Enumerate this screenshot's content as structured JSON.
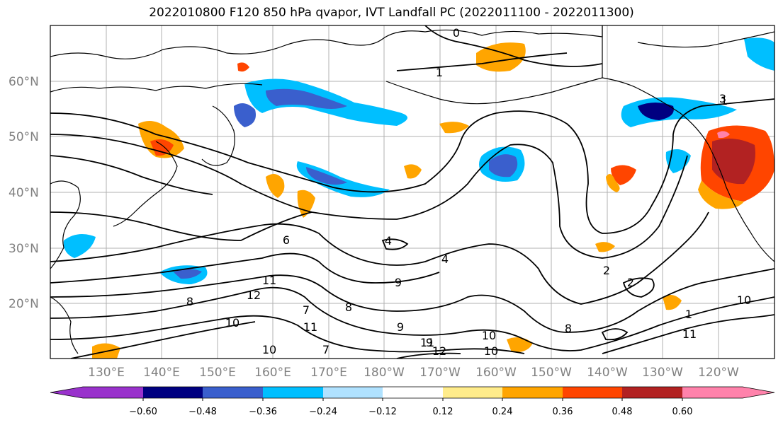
{
  "title": "2022010800 F120 850 hPa qvapor, IVT Landfall PC (2022011100 - 2022011300)",
  "map": {
    "lat_labels": [
      "60°N",
      "50°N",
      "40°N",
      "30°N",
      "20°N"
    ],
    "lon_labels": [
      "130°E",
      "140°E",
      "150°E",
      "160°E",
      "170°E",
      "180°W",
      "170°W",
      "160°W",
      "150°W",
      "140°W",
      "130°W",
      "120°W"
    ],
    "contour_labels": [
      "0",
      "1",
      "1",
      "4",
      "4",
      "9",
      "9",
      "11",
      "11",
      "12",
      "10",
      "10",
      "8",
      "7",
      "8",
      "9",
      "2",
      "2",
      "1",
      "10",
      "11",
      "10",
      "8",
      "6",
      "3",
      "7",
      "11",
      "12",
      "10"
    ]
  },
  "colorbar": {
    "tick_labels": [
      "−0.60",
      "−0.48",
      "−0.36",
      "−0.24",
      "−0.12",
      "0.12",
      "0.24",
      "0.36",
      "0.48",
      "0.60"
    ],
    "colors": [
      "#9932cc",
      "#000080",
      "#3a5fcd",
      "#00bfff",
      "#b0e2ff",
      "#ffffff",
      "#ffec8b",
      "#ffa500",
      "#ff4500",
      "#b22222",
      "#ff82ab"
    ]
  }
}
